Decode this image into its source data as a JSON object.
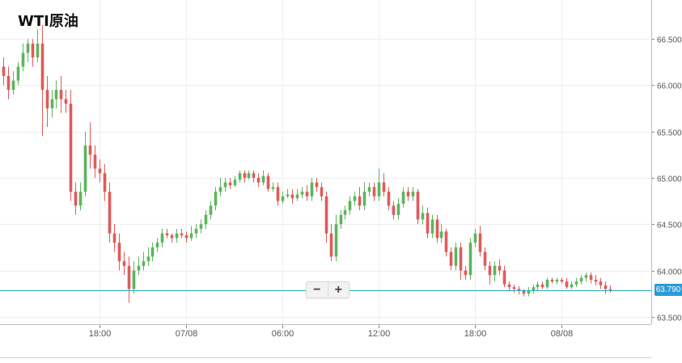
{
  "title": "WTI原油",
  "current_price": "63.790",
  "zoom": {
    "minus_label": "−",
    "plus_label": "+"
  },
  "colors": {
    "up": "#5cb55c",
    "down": "#e05a5a",
    "price_line": "#2aa9b9",
    "price_tag": "#2c9ad6",
    "grid": "#eeeeee",
    "axis": "#888888"
  },
  "chart_data": {
    "type": "candlestick",
    "title": "WTI原油",
    "ylim": [
      63.42,
      66.92
    ],
    "y_ticks": [
      "63.500",
      "64.000",
      "64.500",
      "65.000",
      "65.500",
      "66.000",
      "66.500"
    ],
    "x_ticks": [
      {
        "index": 20,
        "label": "18:00"
      },
      {
        "index": 38,
        "label": "07/08"
      },
      {
        "index": 58,
        "label": "06:00"
      },
      {
        "index": 78,
        "label": "12:00"
      },
      {
        "index": 98,
        "label": "18:00"
      },
      {
        "index": 116,
        "label": "08/08"
      }
    ],
    "grid": true,
    "last_price": 63.79,
    "candles": [
      [
        66.2,
        66.1,
        66.3,
        66.0
      ],
      [
        66.1,
        65.95,
        66.2,
        65.85
      ],
      [
        65.95,
        66.05,
        66.15,
        65.9
      ],
      [
        66.05,
        66.2,
        66.25,
        66.0
      ],
      [
        66.2,
        66.35,
        66.45,
        66.15
      ],
      [
        66.35,
        66.45,
        66.5,
        66.25
      ],
      [
        66.45,
        66.3,
        66.5,
        66.2
      ],
      [
        66.3,
        66.45,
        66.6,
        66.25
      ],
      [
        66.45,
        65.95,
        66.65,
        65.45
      ],
      [
        65.95,
        65.75,
        66.1,
        65.55
      ],
      [
        65.75,
        65.85,
        65.95,
        65.65
      ],
      [
        65.85,
        65.95,
        66.05,
        65.75
      ],
      [
        65.95,
        65.85,
        66.1,
        65.7
      ],
      [
        65.85,
        65.8,
        65.95,
        65.7
      ],
      [
        65.8,
        64.85,
        65.95,
        64.75
      ],
      [
        64.85,
        64.7,
        64.95,
        64.6
      ],
      [
        64.7,
        64.85,
        64.95,
        64.65
      ],
      [
        64.85,
        65.35,
        65.5,
        64.8
      ],
      [
        65.35,
        65.25,
        65.6,
        65.1
      ],
      [
        65.25,
        65.1,
        65.35,
        65.0
      ],
      [
        65.1,
        65.05,
        65.2,
        64.95
      ],
      [
        65.05,
        64.85,
        65.15,
        64.75
      ],
      [
        64.85,
        64.4,
        64.95,
        64.3
      ],
      [
        64.4,
        64.3,
        64.5,
        64.2
      ],
      [
        64.3,
        64.1,
        64.4,
        64.0
      ],
      [
        64.1,
        64.05,
        64.2,
        63.95
      ],
      [
        64.05,
        63.8,
        64.15,
        63.65
      ],
      [
        63.8,
        64.0,
        64.1,
        63.75
      ],
      [
        64.0,
        64.05,
        64.15,
        63.95
      ],
      [
        64.05,
        64.1,
        64.2,
        64.0
      ],
      [
        64.1,
        64.15,
        64.25,
        64.05
      ],
      [
        64.15,
        64.25,
        64.3,
        64.1
      ],
      [
        64.25,
        64.3,
        64.35,
        64.2
      ],
      [
        64.3,
        64.4,
        64.45,
        64.25
      ],
      [
        64.4,
        64.38,
        64.45,
        64.35
      ],
      [
        64.38,
        64.35,
        64.4,
        64.3
      ],
      [
        64.35,
        64.4,
        64.45,
        64.3
      ],
      [
        64.4,
        64.38,
        64.45,
        64.35
      ],
      [
        64.38,
        64.35,
        64.42,
        64.3
      ],
      [
        64.35,
        64.4,
        64.48,
        64.32
      ],
      [
        64.4,
        64.45,
        64.5,
        64.35
      ],
      [
        64.45,
        64.5,
        64.55,
        64.4
      ],
      [
        64.5,
        64.6,
        64.65,
        64.45
      ],
      [
        64.6,
        64.7,
        64.75,
        64.55
      ],
      [
        64.7,
        64.85,
        64.9,
        64.65
      ],
      [
        64.85,
        64.9,
        65.0,
        64.8
      ],
      [
        64.9,
        64.95,
        65.0,
        64.85
      ],
      [
        64.95,
        64.92,
        65.0,
        64.88
      ],
      [
        64.92,
        64.98,
        65.02,
        64.9
      ],
      [
        64.98,
        65.05,
        65.08,
        64.95
      ],
      [
        65.05,
        65.0,
        65.08,
        64.95
      ],
      [
        65.0,
        65.05,
        65.08,
        64.98
      ],
      [
        65.05,
        65.0,
        65.08,
        64.95
      ],
      [
        65.0,
        64.95,
        65.05,
        64.9
      ],
      [
        64.95,
        65.02,
        65.08,
        64.92
      ],
      [
        65.02,
        64.88,
        65.05,
        64.85
      ],
      [
        64.88,
        64.9,
        64.95,
        64.85
      ],
      [
        64.9,
        64.75,
        64.95,
        64.7
      ],
      [
        64.75,
        64.8,
        64.85,
        64.72
      ],
      [
        64.8,
        64.82,
        64.88,
        64.78
      ],
      [
        64.82,
        64.78,
        64.88,
        64.72
      ],
      [
        64.78,
        64.82,
        64.88,
        64.75
      ],
      [
        64.82,
        64.85,
        64.9,
        64.78
      ],
      [
        64.85,
        64.8,
        64.92,
        64.75
      ],
      [
        64.8,
        64.95,
        65.0,
        64.75
      ],
      [
        64.95,
        64.9,
        65.0,
        64.85
      ],
      [
        64.9,
        64.8,
        64.95,
        64.75
      ],
      [
        64.8,
        64.4,
        64.85,
        64.3
      ],
      [
        64.4,
        64.15,
        64.5,
        64.1
      ],
      [
        64.15,
        64.5,
        64.6,
        64.1
      ],
      [
        64.5,
        64.6,
        64.65,
        64.45
      ],
      [
        64.6,
        64.65,
        64.7,
        64.55
      ],
      [
        64.65,
        64.75,
        64.8,
        64.6
      ],
      [
        64.75,
        64.8,
        64.85,
        64.7
      ],
      [
        64.8,
        64.7,
        64.9,
        64.65
      ],
      [
        64.7,
        64.85,
        64.95,
        64.65
      ],
      [
        64.85,
        64.9,
        64.95,
        64.8
      ],
      [
        64.9,
        64.8,
        64.95,
        64.75
      ],
      [
        64.8,
        64.95,
        65.1,
        64.75
      ],
      [
        64.95,
        64.85,
        65.05,
        64.8
      ],
      [
        64.85,
        64.7,
        64.9,
        64.65
      ],
      [
        64.7,
        64.6,
        64.75,
        64.55
      ],
      [
        64.6,
        64.72,
        64.78,
        64.55
      ],
      [
        64.72,
        64.85,
        64.9,
        64.68
      ],
      [
        64.85,
        64.8,
        64.9,
        64.75
      ],
      [
        64.8,
        64.85,
        64.9,
        64.75
      ],
      [
        64.85,
        64.55,
        64.88,
        64.5
      ],
      [
        64.55,
        64.62,
        64.7,
        64.5
      ],
      [
        64.62,
        64.4,
        64.68,
        64.35
      ],
      [
        64.4,
        64.55,
        64.6,
        64.35
      ],
      [
        64.55,
        64.35,
        64.6,
        64.3
      ],
      [
        64.35,
        64.42,
        64.5,
        64.3
      ],
      [
        64.42,
        64.2,
        64.45,
        64.15
      ],
      [
        64.2,
        64.05,
        64.25,
        64.0
      ],
      [
        64.05,
        64.25,
        64.3,
        64.0
      ],
      [
        64.25,
        64.0,
        64.3,
        63.9
      ],
      [
        64.0,
        63.95,
        64.05,
        63.9
      ],
      [
        63.95,
        64.3,
        64.35,
        63.9
      ],
      [
        64.3,
        64.4,
        64.45,
        64.25
      ],
      [
        64.4,
        64.2,
        64.48,
        64.15
      ],
      [
        64.2,
        64.05,
        64.25,
        64.0
      ],
      [
        64.05,
        63.95,
        64.1,
        63.85
      ],
      [
        63.95,
        64.05,
        64.1,
        63.88
      ],
      [
        64.05,
        64.0,
        64.12,
        63.95
      ],
      [
        64.0,
        63.85,
        64.05,
        63.82
      ],
      [
        63.85,
        63.82,
        63.88,
        63.78
      ],
      [
        63.82,
        63.8,
        63.85,
        63.76
      ],
      [
        63.8,
        63.78,
        63.83,
        63.74
      ],
      [
        63.78,
        63.75,
        63.8,
        63.72
      ],
      [
        63.75,
        63.78,
        63.82,
        63.72
      ],
      [
        63.78,
        63.82,
        63.85,
        63.75
      ],
      [
        63.82,
        63.85,
        63.88,
        63.78
      ],
      [
        63.85,
        63.82,
        63.88,
        63.8
      ],
      [
        63.82,
        63.9,
        63.92,
        63.8
      ],
      [
        63.9,
        63.88,
        63.92,
        63.86
      ],
      [
        63.88,
        63.9,
        63.92,
        63.85
      ],
      [
        63.9,
        63.88,
        63.92,
        63.86
      ],
      [
        63.88,
        63.82,
        63.92,
        63.8
      ],
      [
        63.82,
        63.85,
        63.88,
        63.8
      ],
      [
        63.85,
        63.88,
        63.92,
        63.82
      ],
      [
        63.88,
        63.92,
        63.95,
        63.85
      ],
      [
        63.92,
        63.95,
        63.98,
        63.88
      ],
      [
        63.95,
        63.9,
        63.98,
        63.86
      ],
      [
        63.9,
        63.88,
        63.95,
        63.84
      ],
      [
        63.88,
        63.84,
        63.92,
        63.8
      ],
      [
        63.84,
        63.8,
        63.88,
        63.75
      ],
      [
        63.8,
        63.79,
        63.84,
        63.76
      ]
    ]
  }
}
